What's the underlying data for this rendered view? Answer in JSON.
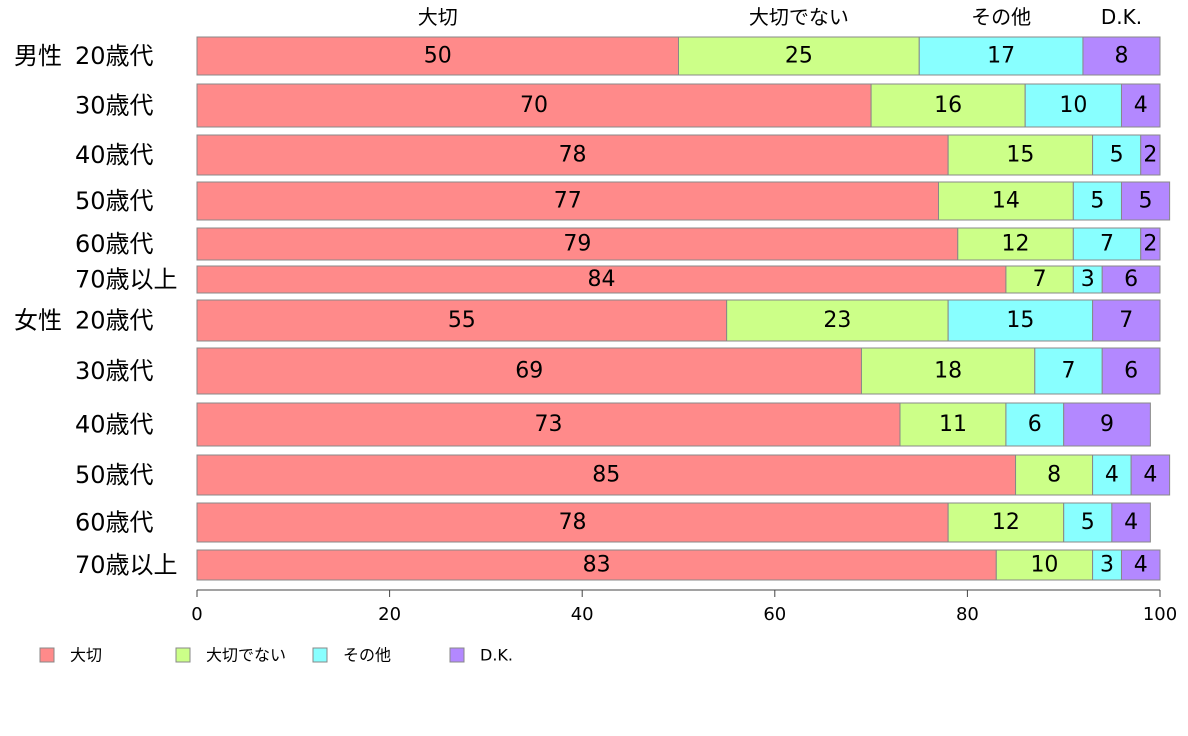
{
  "chart_data": {
    "type": "bar",
    "orientation": "horizontal",
    "stacked": true,
    "series": [
      {
        "name": "大切",
        "color": "#FF8A8A",
        "values": [
          50,
          70,
          78,
          77,
          79,
          84,
          55,
          69,
          73,
          85,
          78,
          83
        ]
      },
      {
        "name": "大切でない",
        "color": "#CCFF88",
        "values": [
          25,
          16,
          15,
          14,
          12,
          7,
          23,
          18,
          11,
          8,
          12,
          10
        ]
      },
      {
        "name": "その他",
        "color": "#88FFFF",
        "values": [
          17,
          10,
          5,
          5,
          7,
          3,
          15,
          7,
          6,
          4,
          5,
          3
        ]
      },
      {
        "name": "D.K.",
        "color": "#B388FF",
        "values": [
          8,
          4,
          2,
          5,
          2,
          6,
          7,
          6,
          9,
          4,
          4,
          4
        ]
      }
    ],
    "rows": [
      {
        "group": "男性",
        "label": "20歳代"
      },
      {
        "group": "",
        "label": "30歳代"
      },
      {
        "group": "",
        "label": "40歳代"
      },
      {
        "group": "",
        "label": "50歳代"
      },
      {
        "group": "",
        "label": "60歳代"
      },
      {
        "group": "",
        "label": "70歳以上"
      },
      {
        "group": "女性",
        "label": "20歳代"
      },
      {
        "group": "",
        "label": "30歳代"
      },
      {
        "group": "",
        "label": "40歳代"
      },
      {
        "group": "",
        "label": "50歳代"
      },
      {
        "group": "",
        "label": "60歳代"
      },
      {
        "group": "",
        "label": "70歳以上"
      }
    ],
    "xlim": [
      0,
      100
    ],
    "xticks": [
      "0",
      "20",
      "40",
      "60",
      "80",
      "100"
    ],
    "grid": false,
    "legend_position": "bottom"
  }
}
